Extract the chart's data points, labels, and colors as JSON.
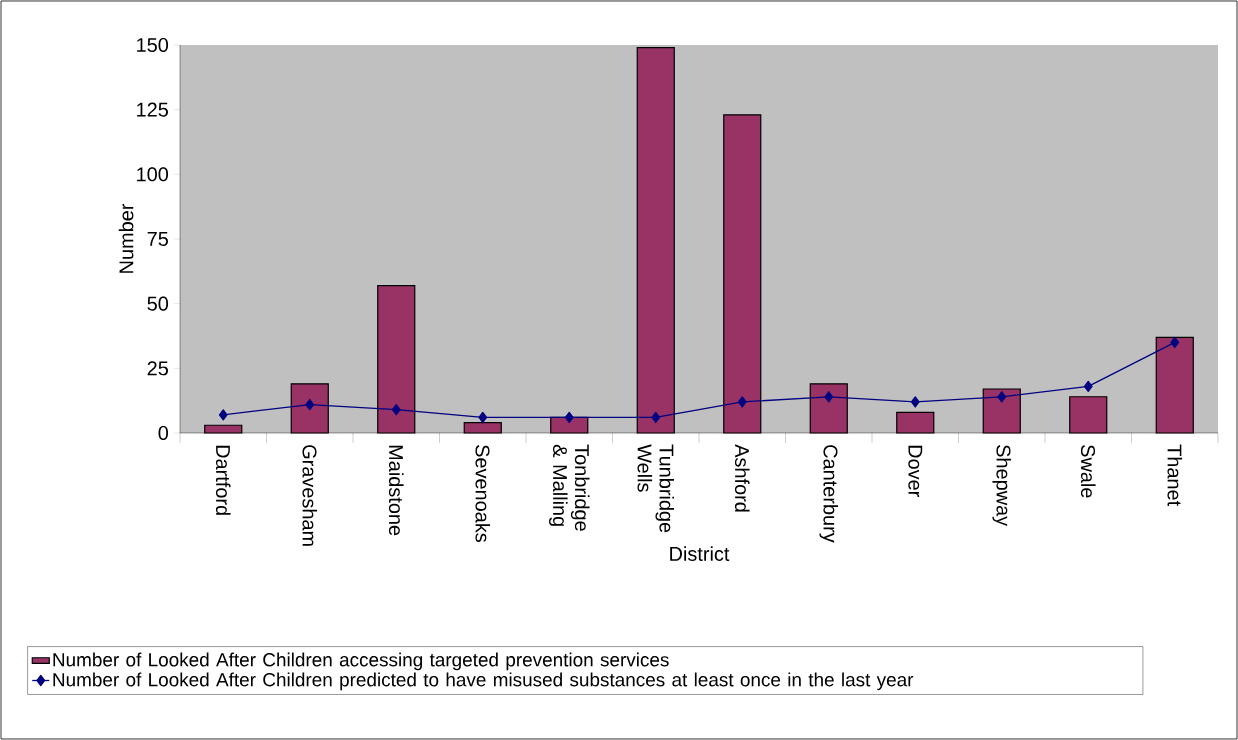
{
  "chart_data": {
    "type": "bar",
    "xlabel": "District",
    "ylabel": "Number",
    "categories": [
      "Dartford",
      "Gravesham",
      "Maidstone",
      "Sevenoaks",
      "Tonbridge & Malling",
      "Tunbridge Wells",
      "Ashford",
      "Canterbury",
      "Dover",
      "Shepway",
      "Swale",
      "Thanet"
    ],
    "series": [
      {
        "name": "Number of Looked After Children accessing targeted prevention services",
        "color": "#993366",
        "values": [
          3,
          19,
          57,
          4,
          6,
          149,
          123,
          19,
          8,
          17,
          14,
          37
        ]
      },
      {
        "name": "Number of Looked After Children predicted to have misused substances at least once in the last year",
        "type": "line",
        "color": "#000080",
        "marker": "diamond",
        "values": [
          7,
          11,
          9,
          6,
          6,
          6,
          12,
          14,
          12,
          14,
          18,
          35
        ]
      }
    ],
    "ylim": [
      0,
      150
    ],
    "yticks": [
      0,
      25,
      50,
      75,
      100,
      125,
      150
    ],
    "grid": false,
    "legend": "bottom"
  }
}
